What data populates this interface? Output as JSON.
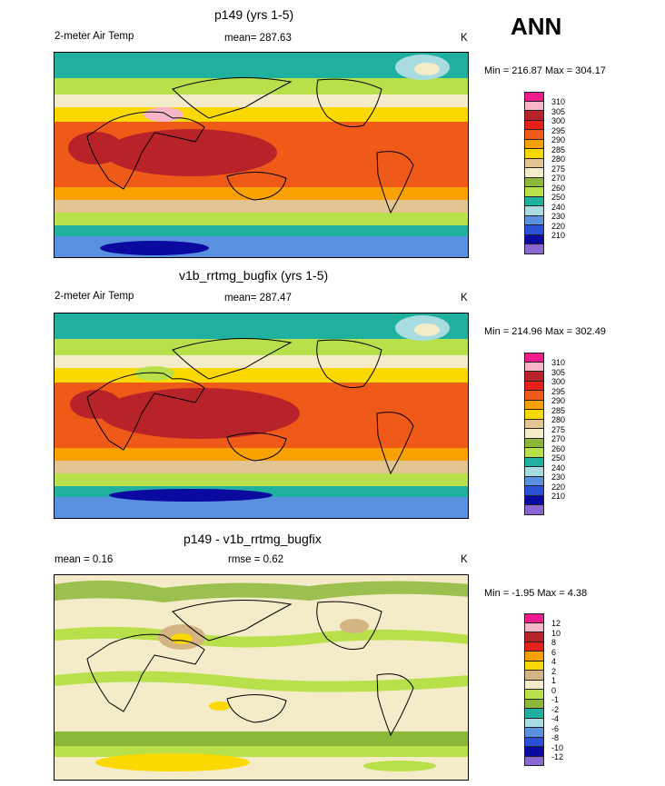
{
  "season": "ANN",
  "panels": [
    {
      "title": "p149 (yrs 1-5)",
      "variable": "2-meter Air Temp",
      "stat": "mean= 287.63",
      "units": "K",
      "minmax": "Min = 216.87 Max = 304.17",
      "legend_labels": [
        "310",
        "305",
        "300",
        "295",
        "290",
        "285",
        "280",
        "275",
        "270",
        "260",
        "250",
        "240",
        "230",
        "220",
        "210"
      ]
    },
    {
      "title": "v1b_rrtmg_bugfix (yrs 1-5)",
      "variable": "2-meter Air Temp",
      "stat": "mean= 287.47",
      "units": "K",
      "minmax": "Min = 214.96 Max = 302.49",
      "legend_labels": [
        "310",
        "305",
        "300",
        "295",
        "290",
        "285",
        "280",
        "275",
        "270",
        "260",
        "250",
        "240",
        "230",
        "220",
        "210"
      ]
    },
    {
      "title": "p149 - v1b_rrtmg_bugfix",
      "stat_left": "mean =   0.16",
      "stat_mid": "rmse =   0.62",
      "units": "K",
      "minmax": "Min =  -1.95 Max =   4.38",
      "legend_labels": [
        "12",
        "10",
        "8",
        "6",
        "4",
        "2",
        "1",
        "0",
        "-1",
        "-2",
        "-4",
        "-6",
        "-8",
        "-10",
        "-12"
      ]
    }
  ],
  "colors": {
    "abs_scale": [
      "#ee1c8c",
      "#f7b6c8",
      "#b8232a",
      "#e8201a",
      "#f05a18",
      "#f9a100",
      "#fbd800",
      "#e2c592",
      "#f4ecc8",
      "#8cb83a",
      "#b8e04a",
      "#20b0a0",
      "#a8dce0",
      "#5a90e0",
      "#2a50d8",
      "#0a0aa0",
      "#8a66d0"
    ],
    "diff_scale": [
      "#ee1c8c",
      "#f7b6c8",
      "#b8232a",
      "#e8201a",
      "#f9a100",
      "#fbd800",
      "#d4b483",
      "#f4ecc8",
      "#b8e04a",
      "#8cb83a",
      "#20b0a0",
      "#a8dce0",
      "#5a90e0",
      "#2a50d8",
      "#0a0aa0",
      "#8a66d0"
    ]
  }
}
